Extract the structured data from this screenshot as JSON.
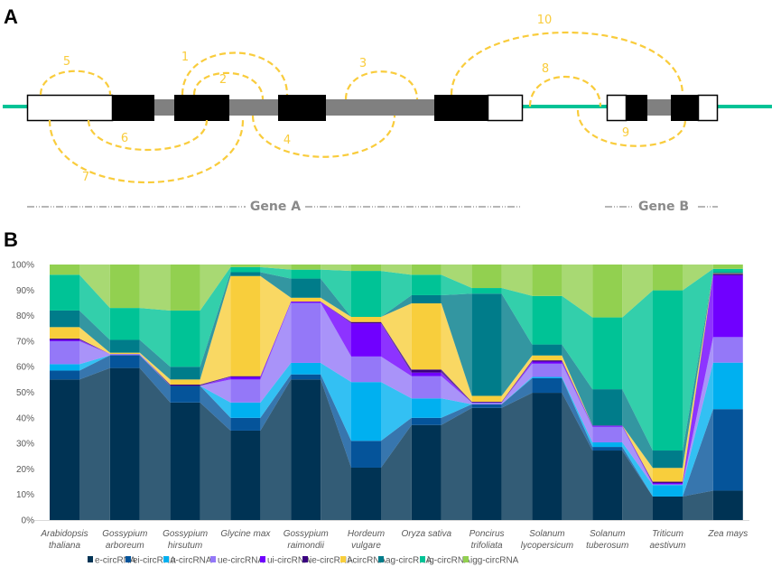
{
  "panel_a": {
    "label": "A",
    "arc_numbers": [
      "1",
      "2",
      "3",
      "4",
      "5",
      "6",
      "7",
      "8",
      "9",
      "10"
    ],
    "gene_a": "Gene A",
    "gene_b": "Gene B"
  },
  "panel_b": {
    "label": "B"
  },
  "colors": {
    "arc": "#f9cc3c",
    "intergenic": "#00c396",
    "intron": "#808080",
    "exon": "#000000"
  },
  "chart_data": {
    "type": "bar",
    "stacked": true,
    "normalized": true,
    "title": "",
    "xlabel": "",
    "ylabel": "",
    "ylim": [
      0,
      100
    ],
    "yticks": [
      "0%",
      "10%",
      "20%",
      "30%",
      "40%",
      "50%",
      "60%",
      "70%",
      "80%",
      "90%",
      "100%"
    ],
    "categories": [
      [
        "Arabidopsis",
        "thaliana"
      ],
      [
        "Gossypium",
        "arboreum"
      ],
      [
        "Gossypium",
        "hirsutum"
      ],
      [
        "Glycine max",
        ""
      ],
      [
        "Gossypium",
        "raimondii"
      ],
      [
        "Hordeum",
        "vulgare"
      ],
      [
        "Oryza sativa",
        ""
      ],
      [
        "Poncirus",
        "trifoliata"
      ],
      [
        "Solanum",
        "lycopersicum"
      ],
      [
        "Solanum",
        "tuberosum"
      ],
      [
        "Triticum",
        "aestivum"
      ],
      [
        "Zea mays",
        ""
      ]
    ],
    "legend_position": "bottom",
    "series": [
      {
        "name": "e-circRNA",
        "color": "#003354",
        "values": [
          55,
          59.5,
          46,
          35,
          55,
          20.5,
          37.2,
          43.9,
          49.8,
          27.2,
          9.2,
          11.5
        ]
      },
      {
        "name": "ei-circRNA",
        "color": "#05549a",
        "values": [
          3.5,
          5,
          6.5,
          5,
          2,
          10.5,
          2.8,
          1.4,
          5.7,
          1.4,
          0,
          31.9
        ]
      },
      {
        "name": "u-circRNA",
        "color": "#00b0f0",
        "values": [
          2.5,
          0,
          0,
          6,
          4.5,
          23,
          7.6,
          0,
          0.5,
          1.8,
          4.5,
          18.2
        ]
      },
      {
        "name": "ue-circRNA",
        "color": "#9478f8",
        "values": [
          9,
          0.5,
          0,
          9,
          23.5,
          10,
          8.7,
          0.7,
          5.2,
          6.1,
          0.3,
          10
        ]
      },
      {
        "name": "ui-circRNA",
        "color": "#7000ff",
        "values": [
          0.5,
          0,
          0,
          1,
          0.5,
          13,
          1.4,
          0,
          0.8,
          0.4,
          0.5,
          24.2
        ]
      },
      {
        "name": "ie-circRNA",
        "color": "#3a0080",
        "values": [
          0.5,
          0,
          0.5,
          0.3,
          0,
          0.5,
          1.2,
          0.3,
          0.5,
          0.1,
          0.5,
          0.6
        ]
      },
      {
        "name": "i-circRNA",
        "color": "#f8ce3c",
        "values": [
          4.5,
          0.5,
          2,
          39.2,
          1.5,
          2,
          25.9,
          2.3,
          1.9,
          0,
          5.4,
          0.2
        ]
      },
      {
        "name": "ag-circRNA",
        "color": "#007c8a",
        "values": [
          6.5,
          5,
          5,
          1.5,
          7.5,
          0,
          3.2,
          40,
          4.3,
          14.2,
          6.8,
          0.4
        ]
      },
      {
        "name": "ig-circRNA",
        "color": "#00c396",
        "values": [
          14,
          12.5,
          22,
          2,
          3.5,
          18,
          8,
          2.2,
          19,
          28.1,
          62.7,
          1.3
        ]
      },
      {
        "name": "igg-circRNA",
        "color": "#92d050",
        "values": [
          4,
          17,
          18,
          1,
          2,
          2.5,
          4,
          9.2,
          12.3,
          20.7,
          10.1,
          1.7
        ]
      }
    ]
  }
}
